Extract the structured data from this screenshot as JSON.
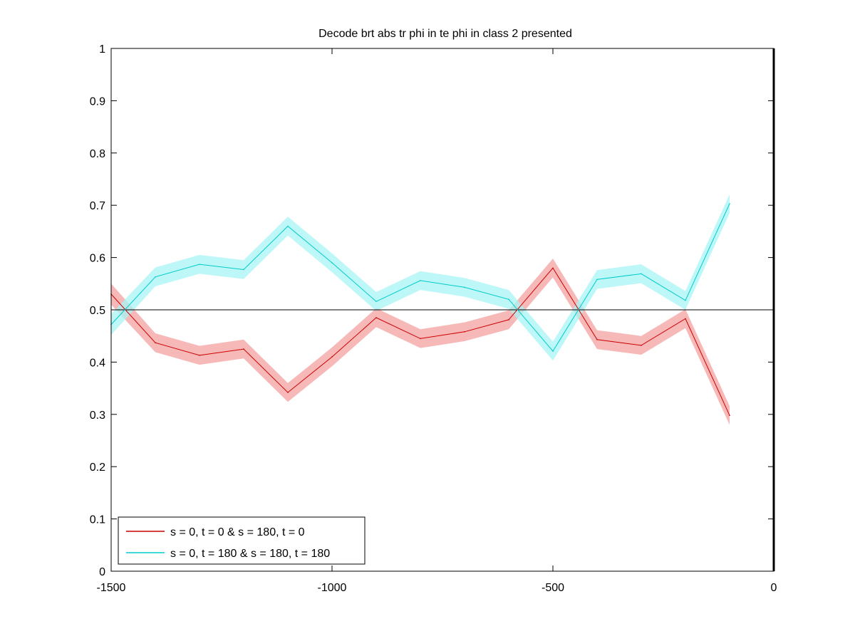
{
  "chart_data": {
    "type": "line",
    "title": "Decode brt abs tr phi in te phi in  class 2 presented",
    "xlabel": "",
    "ylabel": "",
    "xlim": [
      -1500,
      0
    ],
    "ylim": [
      0,
      1
    ],
    "xticks": [
      -1500,
      -1000,
      -500,
      0
    ],
    "xtick_labels": [
      "-1500",
      "-1000",
      "-500",
      "0"
    ],
    "yticks": [
      0,
      0.1,
      0.2,
      0.3,
      0.4,
      0.5,
      0.6,
      0.7,
      0.8,
      0.9,
      1
    ],
    "ytick_labels": [
      "0",
      "0.1",
      "0.2",
      "0.3",
      "0.4",
      "0.5",
      "0.6",
      "0.7",
      "0.8",
      "0.9",
      "1"
    ],
    "grid": false,
    "legend_position": "bottom-left",
    "reference_lines": [
      {
        "orientation": "horizontal",
        "value": 0.5,
        "color": "#000000"
      },
      {
        "orientation": "vertical",
        "value": 0,
        "color": "#000000"
      }
    ],
    "x": [
      -1500,
      -1400,
      -1300,
      -1200,
      -1100,
      -1000,
      -900,
      -800,
      -700,
      -600,
      -500,
      -400,
      -300,
      -200,
      -100
    ],
    "series": [
      {
        "name": "s = 0, t = 0 & s = 180, t = 0",
        "color": "#cc0000",
        "band_color": "#f4a0a0",
        "values": [
          0.53,
          0.437,
          0.413,
          0.425,
          0.342,
          0.41,
          0.485,
          0.445,
          0.458,
          0.481,
          0.58,
          0.443,
          0.432,
          0.483,
          0.298
        ],
        "band_halfwidth": [
          0.02,
          0.018,
          0.018,
          0.018,
          0.018,
          0.018,
          0.018,
          0.018,
          0.018,
          0.018,
          0.018,
          0.018,
          0.018,
          0.018,
          0.018
        ]
      },
      {
        "name": "s = 0, t = 180 & s = 180, t = 180",
        "color": "#00cccc",
        "band_color": "#a8f4f4",
        "values": [
          0.472,
          0.563,
          0.587,
          0.577,
          0.66,
          0.59,
          0.516,
          0.556,
          0.543,
          0.52,
          0.421,
          0.558,
          0.569,
          0.518,
          0.703
        ],
        "band_halfwidth": [
          0.02,
          0.018,
          0.018,
          0.018,
          0.018,
          0.018,
          0.018,
          0.018,
          0.018,
          0.018,
          0.018,
          0.018,
          0.018,
          0.018,
          0.018
        ]
      }
    ]
  }
}
